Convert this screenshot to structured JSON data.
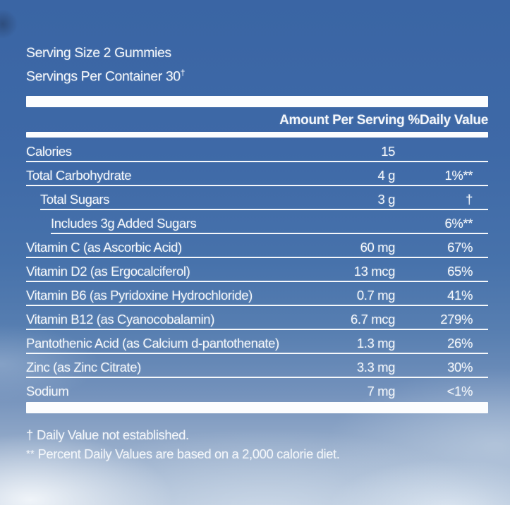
{
  "label": {
    "serving_size_line": "Serving Size 2 Gummies",
    "servings_per_container_line": "Servings Per Container 30",
    "servings_superscript": "†",
    "column_header": "Amount Per Serving %Daily Value",
    "rows": [
      {
        "name": "Calories",
        "indent": 0,
        "amount": "15",
        "daily_value": ""
      },
      {
        "name": "Total Carbohydrate",
        "indent": 0,
        "amount": "4 g",
        "daily_value": "1%**"
      },
      {
        "name": "Total Sugars",
        "indent": 1,
        "amount": "3 g",
        "daily_value": "†"
      },
      {
        "name": "Includes 3g Added Sugars",
        "indent": 2,
        "amount": "",
        "daily_value": "6%**"
      },
      {
        "name": "Vitamin C (as Ascorbic Acid)",
        "indent": 0,
        "amount": "60 mg",
        "daily_value": "67%"
      },
      {
        "name": "Vitamin D2 (as Ergocalciferol)",
        "indent": 0,
        "amount": "13 mcg",
        "daily_value": "65%"
      },
      {
        "name": "Vitamin B6 (as Pyridoxine Hydrochloride)",
        "indent": 0,
        "amount": "0.7 mg",
        "daily_value": "41%"
      },
      {
        "name": "Vitamin B12 (as Cyanocobalamin)",
        "indent": 0,
        "amount": "6.7 mcg",
        "daily_value": "279%"
      },
      {
        "name": "Pantothenic Acid (as Calcium d-pantothenate)",
        "indent": 0,
        "amount": "1.3 mg",
        "daily_value": "26%"
      },
      {
        "name": "Zinc (as Zinc Citrate)",
        "indent": 0,
        "amount": "3.3 mg",
        "daily_value": "30%"
      },
      {
        "name": "Sodium",
        "indent": 0,
        "amount": "7 mg",
        "daily_value": "<1%"
      }
    ],
    "footnotes": [
      {
        "marker": "†",
        "superscript": false,
        "text": "Daily Value not established."
      },
      {
        "marker": "**",
        "superscript": true,
        "text": "Percent Daily Values are based on a 2,000 calorie diet."
      }
    ]
  },
  "colors": {
    "sky_top": "#3a65a4",
    "sky_bottom": "#adbfd6",
    "panel_rule_white": "#fcfdfe",
    "text_white": "#f3f6fa"
  }
}
